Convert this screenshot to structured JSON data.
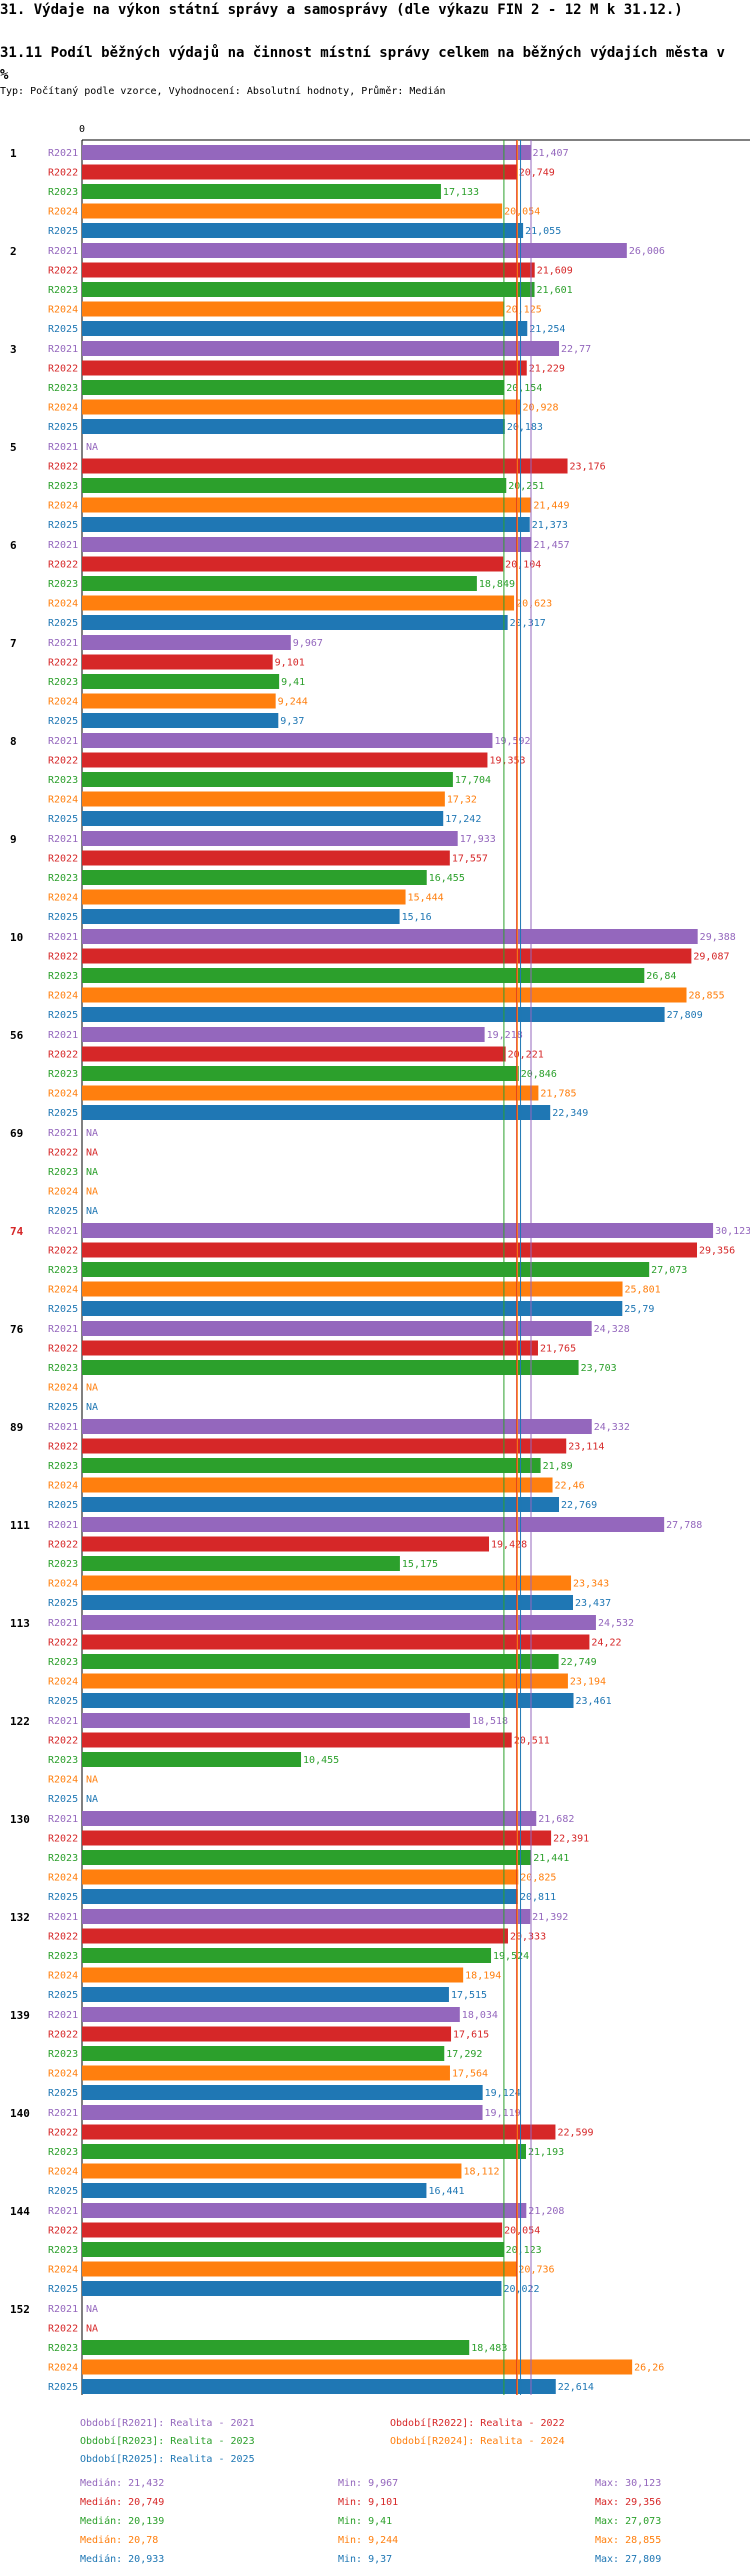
{
  "page": {
    "title": "31. Výdaje na výkon státní správy a samosprávy (dle výkazu FIN 2 - 12 M k 31.12.)",
    "subtitle": "31.11 Podíl běžných výdajů na činnost místní správy celkem na běžných výdajích města v %",
    "params": "Typ: Počítaný podle vzorce, Vyhodnocení: Absolutní hodnoty, Průměr: Medián"
  },
  "chart_data": {
    "type": "bar",
    "orientation": "horizontal",
    "axis_zero_label": "0",
    "xlim": [
      0,
      31
    ],
    "highlight_category": "74",
    "na_label": "NA",
    "series": [
      {
        "name": "R2021",
        "color": "#9467bd"
      },
      {
        "name": "R2022",
        "color": "#d62728"
      },
      {
        "name": "R2023",
        "color": "#2ca02c"
      },
      {
        "name": "R2024",
        "color": "#ff7f0e"
      },
      {
        "name": "R2025",
        "color": "#1f77b4"
      }
    ],
    "groups": [
      {
        "id": "1",
        "values": [
          21.407,
          20.749,
          17.133,
          20.054,
          21.055
        ],
        "labels": [
          "21,407",
          "20,749",
          "17,133",
          "20,054",
          "21,055"
        ]
      },
      {
        "id": "2",
        "values": [
          26.006,
          21.609,
          21.601,
          20.125,
          21.254
        ],
        "labels": [
          "26,006",
          "21,609",
          "21,601",
          "20,125",
          "21,254"
        ]
      },
      {
        "id": "3",
        "values": [
          22.77,
          21.229,
          20.154,
          20.928,
          20.183
        ],
        "labels": [
          "22,77",
          "21,229",
          "20,154",
          "20,928",
          "20,183"
        ]
      },
      {
        "id": "5",
        "values": [
          null,
          23.176,
          20.251,
          21.449,
          21.373
        ],
        "labels": [
          "NA",
          "23,176",
          "20,251",
          "21,449",
          "21,373"
        ]
      },
      {
        "id": "6",
        "values": [
          21.457,
          20.104,
          18.849,
          20.623,
          20.317
        ],
        "labels": [
          "21,457",
          "20,104",
          "18,849",
          "20,623",
          "20,317"
        ]
      },
      {
        "id": "7",
        "values": [
          9.967,
          9.101,
          9.41,
          9.244,
          9.37
        ],
        "labels": [
          "9,967",
          "9,101",
          "9,41",
          "9,244",
          "9,37"
        ]
      },
      {
        "id": "8",
        "values": [
          19.592,
          19.353,
          17.704,
          17.32,
          17.242
        ],
        "labels": [
          "19,592",
          "19,353",
          "17,704",
          "17,32",
          "17,242"
        ]
      },
      {
        "id": "9",
        "values": [
          17.933,
          17.557,
          16.455,
          15.444,
          15.16
        ],
        "labels": [
          "17,933",
          "17,557",
          "16,455",
          "15,444",
          "15,16"
        ]
      },
      {
        "id": "10",
        "values": [
          29.388,
          29.087,
          26.84,
          28.855,
          27.809
        ],
        "labels": [
          "29,388",
          "29,087",
          "26,84",
          "28,855",
          "27,809"
        ]
      },
      {
        "id": "56",
        "values": [
          19.218,
          20.221,
          20.846,
          21.785,
          22.349
        ],
        "labels": [
          "19,218",
          "20,221",
          "20,846",
          "21,785",
          "22,349"
        ]
      },
      {
        "id": "69",
        "values": [
          null,
          null,
          null,
          null,
          null
        ],
        "labels": [
          "NA",
          "NA",
          "NA",
          "NA",
          "NA"
        ]
      },
      {
        "id": "74",
        "values": [
          30.123,
          29.356,
          27.073,
          25.801,
          25.79
        ],
        "labels": [
          "30,123",
          "29,356",
          "27,073",
          "25,801",
          "25,79"
        ]
      },
      {
        "id": "76",
        "values": [
          24.328,
          21.765,
          23.703,
          null,
          null
        ],
        "labels": [
          "24,328",
          "21,765",
          "23,703",
          "NA",
          "NA"
        ]
      },
      {
        "id": "89",
        "values": [
          24.332,
          23.114,
          21.89,
          22.46,
          22.769
        ],
        "labels": [
          "24,332",
          "23,114",
          "21,89",
          "22,46",
          "22,769"
        ]
      },
      {
        "id": "111",
        "values": [
          27.788,
          19.428,
          15.175,
          23.343,
          23.437
        ],
        "labels": [
          "27,788",
          "19,428",
          "15,175",
          "23,343",
          "23,437"
        ]
      },
      {
        "id": "113",
        "values": [
          24.532,
          24.22,
          22.749,
          23.194,
          23.461
        ],
        "labels": [
          "24,532",
          "24,22",
          "22,749",
          "23,194",
          "23,461"
        ]
      },
      {
        "id": "122",
        "values": [
          18.518,
          20.511,
          10.455,
          null,
          null
        ],
        "labels": [
          "18,518",
          "20,511",
          "10,455",
          "NA",
          "NA"
        ]
      },
      {
        "id": "130",
        "values": [
          21.682,
          22.391,
          21.441,
          20.825,
          20.811
        ],
        "labels": [
          "21,682",
          "22,391",
          "21,441",
          "20,825",
          "20,811"
        ]
      },
      {
        "id": "132",
        "values": [
          21.392,
          20.333,
          19.524,
          18.194,
          17.515
        ],
        "labels": [
          "21,392",
          "20,333",
          "19,524",
          "18,194",
          "17,515"
        ]
      },
      {
        "id": "139",
        "values": [
          18.034,
          17.615,
          17.292,
          17.564,
          19.124
        ],
        "labels": [
          "18,034",
          "17,615",
          "17,292",
          "17,564",
          "19,124"
        ]
      },
      {
        "id": "140",
        "values": [
          19.119,
          22.599,
          21.193,
          18.112,
          16.441
        ],
        "labels": [
          "19,119",
          "22,599",
          "21,193",
          "18,112",
          "16,441"
        ]
      },
      {
        "id": "144",
        "values": [
          21.208,
          20.054,
          20.123,
          20.736,
          20.022
        ],
        "labels": [
          "21,208",
          "20,054",
          "20,123",
          "20,736",
          "20,022"
        ]
      },
      {
        "id": "152",
        "values": [
          null,
          null,
          18.483,
          26.26,
          22.614
        ],
        "labels": [
          "NA",
          "NA",
          "18,483",
          "26,26",
          "22,614"
        ]
      }
    ],
    "medians": [
      21.432,
      20.749,
      20.139,
      20.78,
      20.933
    ]
  },
  "legend": [
    {
      "text": "Období[R2021]: Realita - 2021",
      "color": "#9467bd"
    },
    {
      "text": "Období[R2022]: Realita - 2022",
      "color": "#d62728"
    },
    {
      "text": "Období[R2023]: Realita - 2023",
      "color": "#2ca02c"
    },
    {
      "text": "Období[R2024]: Realita - 2024",
      "color": "#ff7f0e"
    },
    {
      "text": "Období[R2025]: Realita - 2025",
      "color": "#1f77b4"
    }
  ],
  "stats": [
    {
      "median": "Medián: 21,432",
      "min": "Min: 9,967",
      "max": "Max: 30,123",
      "color": "#9467bd"
    },
    {
      "median": "Medián: 20,749",
      "min": "Min: 9,101",
      "max": "Max: 29,356",
      "color": "#d62728"
    },
    {
      "median": "Medián: 20,139",
      "min": "Min: 9,41",
      "max": "Max: 27,073",
      "color": "#2ca02c"
    },
    {
      "median": "Medián: 20,78",
      "min": "Min: 9,244",
      "max": "Max: 28,855",
      "color": "#ff7f0e"
    },
    {
      "median": "Medián: 20,933",
      "min": "Min: 9,37",
      "max": "Max: 27,809",
      "color": "#1f77b4"
    }
  ]
}
